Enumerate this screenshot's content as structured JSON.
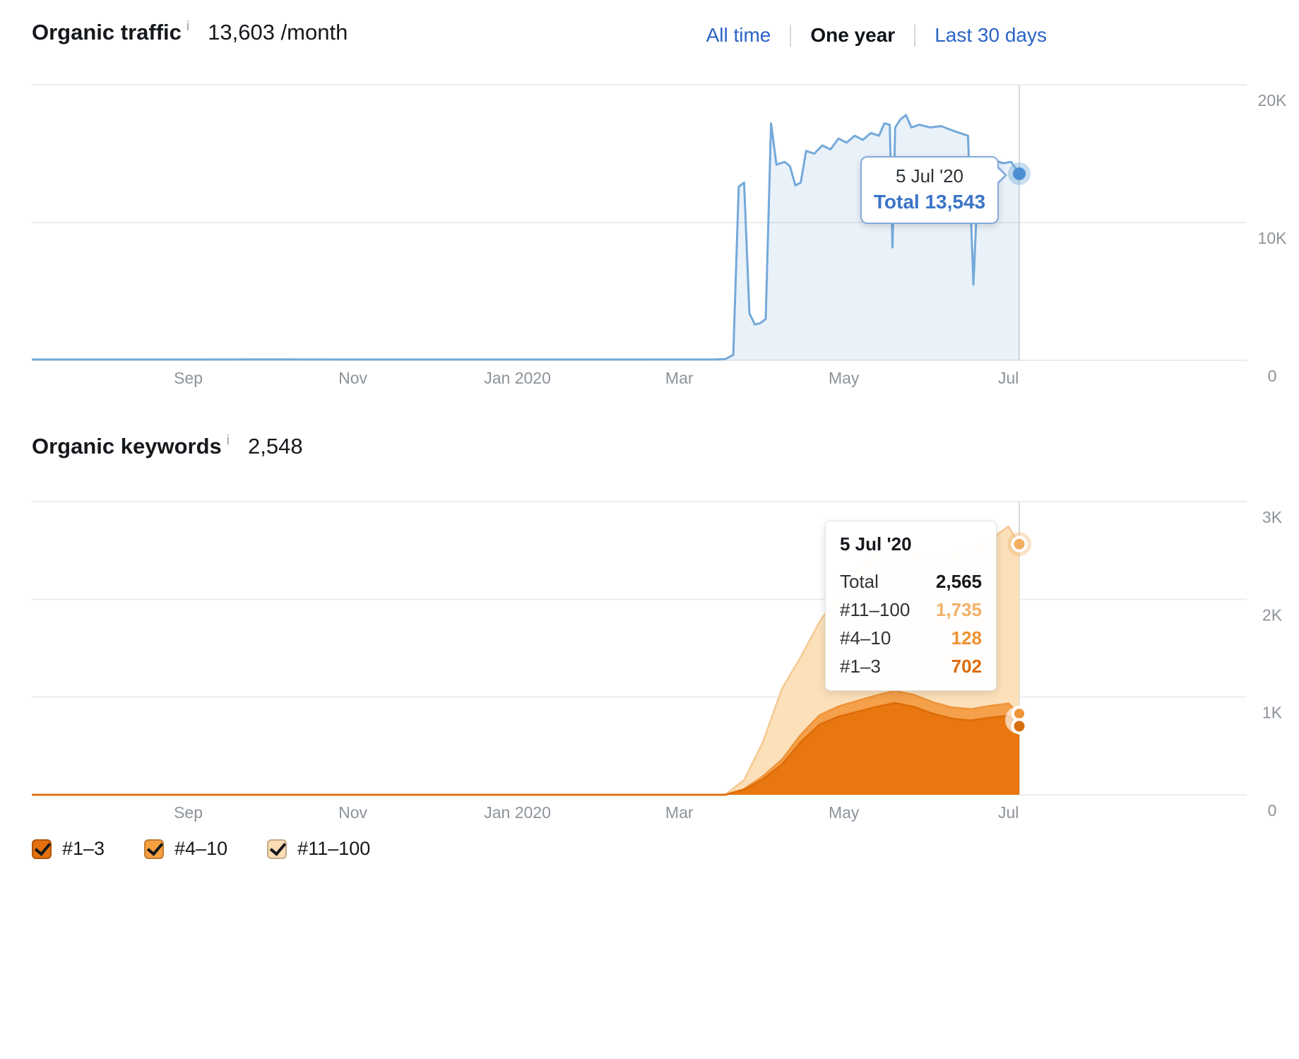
{
  "traffic_section": {
    "title": "Organic traffic",
    "info_icon": "i",
    "value": "13,603 /month",
    "tabs": [
      {
        "label": "All time",
        "active": false
      },
      {
        "label": "One year",
        "active": true
      },
      {
        "label": "Last 30 days",
        "active": false
      }
    ],
    "tooltip": {
      "date": "5 Jul '20",
      "label": "Total",
      "value": "13,543"
    }
  },
  "keywords_section": {
    "title": "Organic keywords",
    "info_icon": "i",
    "value": "2,548",
    "tooltip": {
      "date": "5 Jul '20",
      "rows": [
        {
          "label": "Total",
          "value": "2,565",
          "color": "#15181c"
        },
        {
          "label": "#11–100",
          "value": "1,735",
          "color": "#f2b167"
        },
        {
          "label": "#4–10",
          "value": "128",
          "color": "#ef9030"
        },
        {
          "label": "#1–3",
          "value": "702",
          "color": "#dd6b0b"
        }
      ]
    },
    "legend": [
      {
        "label": "#1–3",
        "color": "#e2700e",
        "checked": true
      },
      {
        "label": "#4–10",
        "color": "#f7a041",
        "checked": true
      },
      {
        "label": "#11–100",
        "color": "#fbdcb3",
        "checked": true
      }
    ]
  },
  "colors": {
    "link_blue": "#2b64c6",
    "traffic_line": "#74a9da",
    "traffic_fill": "rgba(116,169,218,0.16)",
    "axis_text": "#8d939a",
    "gridline": "#ebecee"
  },
  "chart_data": [
    {
      "type": "area",
      "title": "Organic traffic",
      "x_tick_labels": [
        "Sep",
        "Nov",
        "Jan 2020",
        "Mar",
        "May",
        "Jul"
      ],
      "y_ticks": [
        {
          "label": "20K",
          "value": 20000
        },
        {
          "label": "10K",
          "value": 10000
        },
        {
          "label": "0",
          "value": 0
        }
      ],
      "ylim": [
        0,
        20000
      ],
      "x_range": [
        "2019-07-05",
        "2020-07-05"
      ],
      "line_color": "#74a9da",
      "fill_color": "rgba(116,169,218,0.16)",
      "points": [
        [
          "2019-07-05",
          55
        ],
        [
          "2019-10-01",
          60
        ],
        [
          "2020-01-01",
          55
        ],
        [
          "2020-03-14",
          60
        ],
        [
          "2020-03-18",
          80
        ],
        [
          "2020-03-21",
          400
        ],
        [
          "2020-03-23",
          12600
        ],
        [
          "2020-03-25",
          12900
        ],
        [
          "2020-03-27",
          3400
        ],
        [
          "2020-03-29",
          2600
        ],
        [
          "2020-03-31",
          2700
        ],
        [
          "2020-04-02",
          3000
        ],
        [
          "2020-04-04",
          17200
        ],
        [
          "2020-04-06",
          14200
        ],
        [
          "2020-04-09",
          14400
        ],
        [
          "2020-04-11",
          14100
        ],
        [
          "2020-04-13",
          12700
        ],
        [
          "2020-04-15",
          12900
        ],
        [
          "2020-04-17",
          15200
        ],
        [
          "2020-04-20",
          15000
        ],
        [
          "2020-04-23",
          15600
        ],
        [
          "2020-04-26",
          15300
        ],
        [
          "2020-04-29",
          16100
        ],
        [
          "2020-05-02",
          15800
        ],
        [
          "2020-05-05",
          16300
        ],
        [
          "2020-05-08",
          16000
        ],
        [
          "2020-05-11",
          16500
        ],
        [
          "2020-05-14",
          16300
        ],
        [
          "2020-05-16",
          17200
        ],
        [
          "2020-05-18",
          17100
        ],
        [
          "2020-05-19",
          8200
        ],
        [
          "2020-05-20",
          16900
        ],
        [
          "2020-05-22",
          17500
        ],
        [
          "2020-05-24",
          17800
        ],
        [
          "2020-05-26",
          16900
        ],
        [
          "2020-05-29",
          17100
        ],
        [
          "2020-06-02",
          16900
        ],
        [
          "2020-06-06",
          17000
        ],
        [
          "2020-06-10",
          16700
        ],
        [
          "2020-06-13",
          16500
        ],
        [
          "2020-06-16",
          16300
        ],
        [
          "2020-06-18",
          5500
        ],
        [
          "2020-06-20",
          14500
        ],
        [
          "2020-06-23",
          14400
        ],
        [
          "2020-06-26",
          14500
        ],
        [
          "2020-06-29",
          14300
        ],
        [
          "2020-07-02",
          14400
        ],
        [
          "2020-07-05",
          13543
        ]
      ],
      "end_marker": {
        "date": "2020-07-05",
        "value": 13543
      }
    },
    {
      "type": "stacked-area",
      "title": "Organic keywords",
      "x_tick_labels": [
        "Sep",
        "Nov",
        "Jan 2020",
        "Mar",
        "May",
        "Jul"
      ],
      "y_ticks": [
        {
          "label": "3K",
          "value": 3000
        },
        {
          "label": "2K",
          "value": 2000
        },
        {
          "label": "1K",
          "value": 1000
        },
        {
          "label": "0",
          "value": 0
        }
      ],
      "ylim": [
        0,
        3000
      ],
      "x_range": [
        "2019-07-05",
        "2020-07-05"
      ],
      "x": [
        "2019-07-05",
        "2020-03-18",
        "2020-03-25",
        "2020-04-01",
        "2020-04-08",
        "2020-04-15",
        "2020-04-22",
        "2020-04-29",
        "2020-05-06",
        "2020-05-13",
        "2020-05-20",
        "2020-05-27",
        "2020-06-03",
        "2020-06-10",
        "2020-06-17",
        "2020-06-24",
        "2020-07-01",
        "2020-07-05"
      ],
      "series": [
        {
          "name": "#1–3",
          "color": "#e8770f",
          "edge": "#dd6b08",
          "dot": "#d96e0e",
          "values": [
            0,
            0,
            50,
            160,
            310,
            540,
            720,
            800,
            850,
            900,
            940,
            900,
            830,
            780,
            760,
            790,
            810,
            702
          ]
        },
        {
          "name": "#4–10",
          "color": "#f5a04a",
          "edge": "#ef9338",
          "dot": "#ef9338",
          "values": [
            0,
            0,
            10,
            30,
            50,
            75,
            95,
            105,
            112,
            118,
            125,
            122,
            118,
            114,
            116,
            120,
            125,
            128
          ]
        },
        {
          "name": "#11–100",
          "color": "#fbe0ba",
          "edge": "#f6c891",
          "dot": "#f1ae62",
          "values": [
            0,
            0,
            90,
            350,
            725,
            795,
            955,
            1150,
            1350,
            1480,
            1500,
            1450,
            1480,
            1550,
            1650,
            1700,
            1810,
            1735
          ]
        }
      ],
      "end_totals": {
        "total": 2565,
        "r11_100": 1735,
        "r4_10": 128,
        "r1_3": 702
      }
    }
  ]
}
